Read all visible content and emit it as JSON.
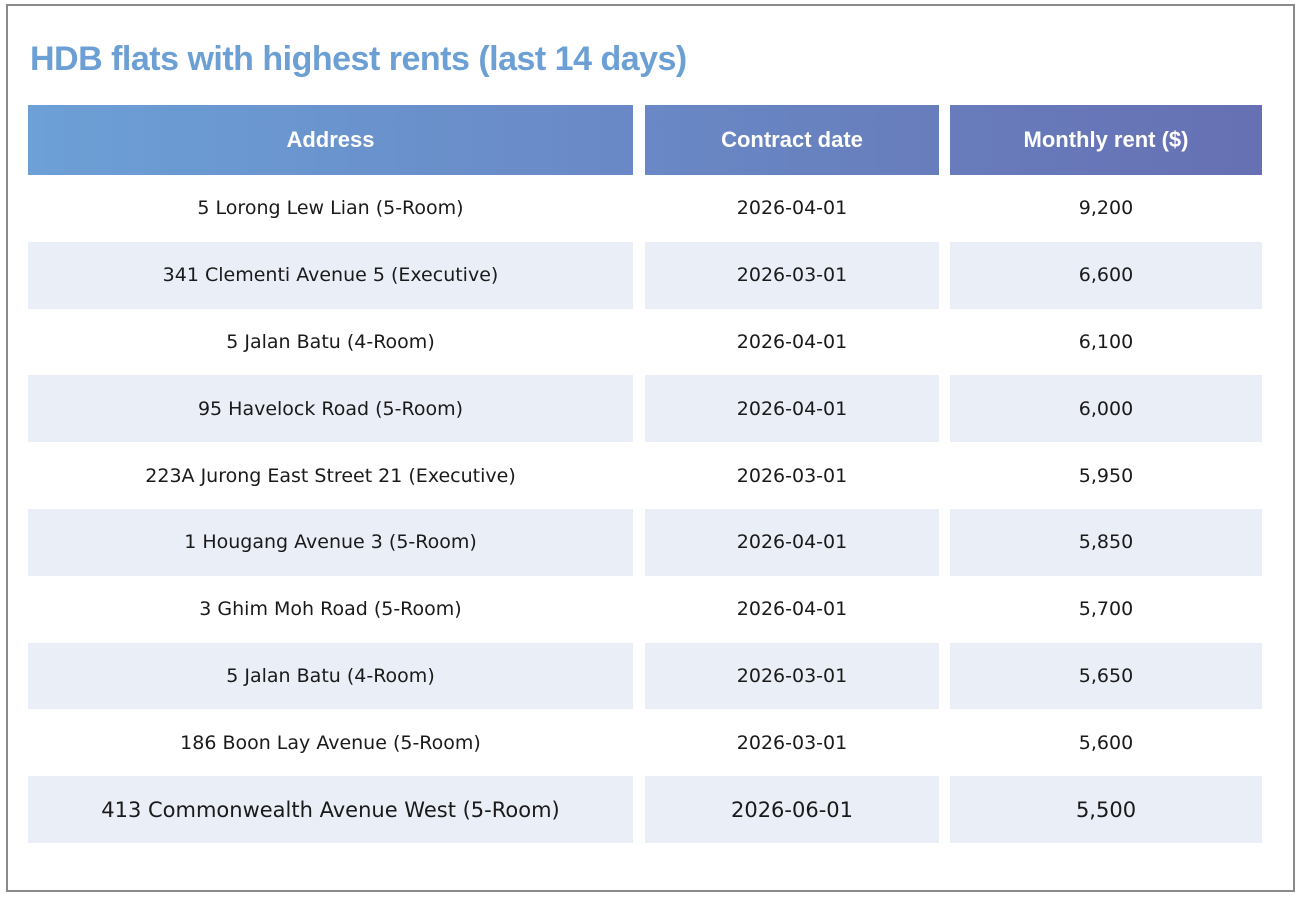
{
  "header": {
    "title": "HDB flats with highest rents (last 14 days)"
  },
  "table": {
    "columns": [
      "Address",
      "Contract date",
      "Monthly rent ($)"
    ],
    "rows": [
      [
        "5 Lorong Lew Lian (5-Room)",
        "2026-04-01",
        "9,200"
      ],
      [
        "341 Clementi Avenue 5 (Executive)",
        "2026-03-01",
        "6,600"
      ],
      [
        "5 Jalan Batu (4-Room)",
        "2026-04-01",
        "6,100"
      ],
      [
        "95 Havelock Road (5-Room)",
        "2026-04-01",
        "6,000"
      ],
      [
        "223A Jurong East Street 21 (Executive)",
        "2026-03-01",
        "5,950"
      ],
      [
        "1 Hougang Avenue 3 (5-Room)",
        "2026-04-01",
        "5,850"
      ],
      [
        "3 Ghim Moh Road (5-Room)",
        "2026-04-01",
        "5,700"
      ],
      [
        "5 Jalan Batu (4-Room)",
        "2026-03-01",
        "5,650"
      ],
      [
        "186 Boon Lay Avenue (5-Room)",
        "2026-03-01",
        "5,600"
      ],
      [
        "413 Commonwealth Avenue West (5-Room)",
        "2026-06-01",
        "5,500"
      ]
    ]
  }
}
